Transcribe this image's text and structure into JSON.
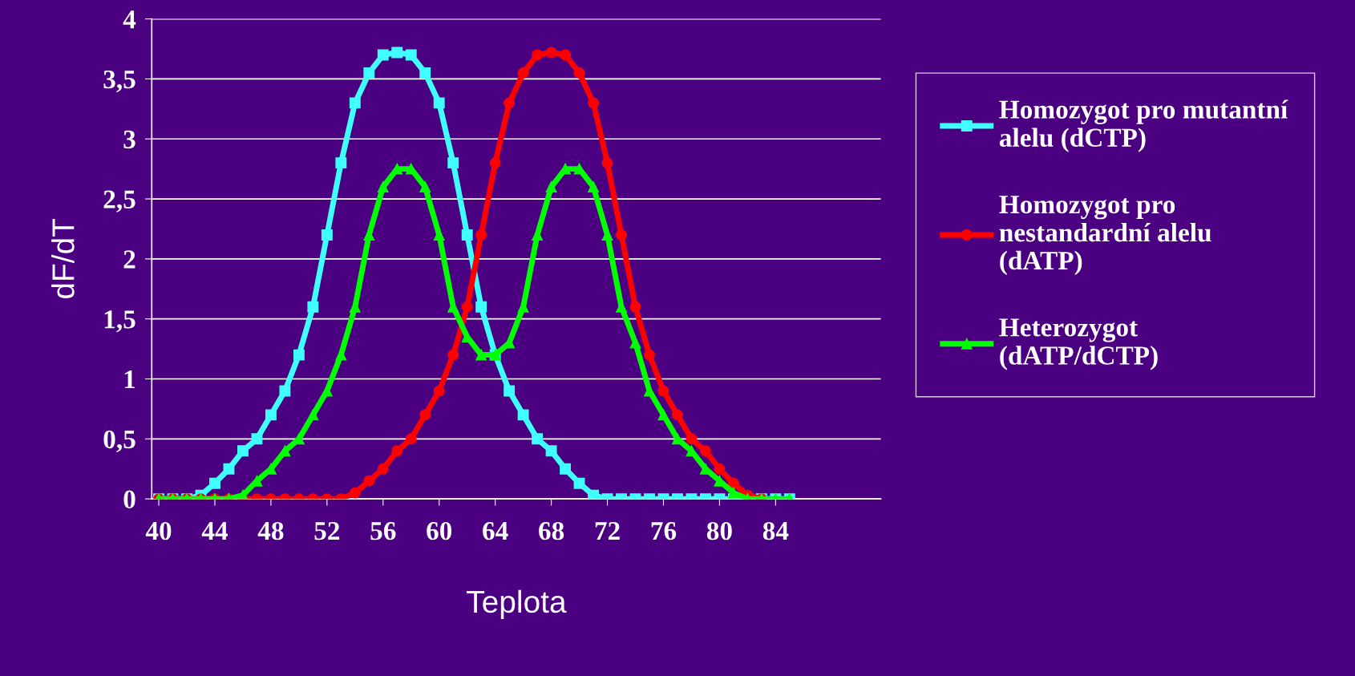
{
  "chart_data": {
    "type": "line",
    "xlabel": "Teplota",
    "ylabel": "dF/dT",
    "xlim": [
      39.5,
      91.5
    ],
    "xticks": [
      40,
      44,
      48,
      52,
      56,
      60,
      64,
      68,
      72,
      76,
      80,
      84
    ],
    "ylim": [
      0,
      4
    ],
    "yticks": [
      {
        "value": 0,
        "label": "0"
      },
      {
        "value": 0.5,
        "label": "0,5"
      },
      {
        "value": 1,
        "label": "1"
      },
      {
        "value": 1.5,
        "label": "1,5"
      },
      {
        "value": 2,
        "label": "2"
      },
      {
        "value": 2.5,
        "label": "2,5"
      },
      {
        "value": 3,
        "label": "3"
      },
      {
        "value": 3.5,
        "label": "3,5"
      },
      {
        "value": 4,
        "label": "4"
      }
    ],
    "grid": "y",
    "legend": "right",
    "line_style": "solid",
    "series": [
      {
        "name": "Homozygot pro mutantní alelu (dCTP)",
        "color": "#40ffff",
        "marker": "square",
        "x": [
          40,
          41,
          42,
          43,
          44,
          45,
          46,
          47,
          48,
          49,
          50,
          51,
          52,
          53,
          54,
          55,
          56,
          57,
          58,
          59,
          60,
          61,
          62,
          63,
          64,
          65,
          66,
          67,
          68,
          69,
          70,
          71,
          72,
          73,
          74,
          75,
          76,
          77,
          78,
          79,
          80,
          81,
          82,
          83,
          84,
          85
        ],
        "values": [
          0,
          0,
          0,
          0.03,
          0.13,
          0.25,
          0.4,
          0.5,
          0.7,
          0.9,
          1.2,
          1.6,
          2.2,
          2.8,
          3.3,
          3.55,
          3.7,
          3.72,
          3.7,
          3.55,
          3.3,
          2.8,
          2.2,
          1.6,
          1.2,
          0.9,
          0.7,
          0.5,
          0.4,
          0.25,
          0.13,
          0.03,
          0,
          0,
          0,
          0,
          0,
          0,
          0,
          0,
          0,
          0,
          0,
          0,
          0,
          0
        ]
      },
      {
        "name": "Homozygot pro nestandardní alelu (dATP)",
        "color": "#ff0000",
        "marker": "circle",
        "x": [
          40,
          41,
          42,
          43,
          44,
          45,
          46,
          47,
          48,
          49,
          50,
          51,
          52,
          53,
          54,
          55,
          56,
          57,
          58,
          59,
          60,
          61,
          62,
          63,
          64,
          65,
          66,
          67,
          68,
          69,
          70,
          71,
          72,
          73,
          74,
          75,
          76,
          77,
          78,
          79,
          80,
          81,
          82,
          83
        ],
        "values": [
          0,
          0,
          0,
          0,
          0,
          0,
          0,
          0,
          0,
          0,
          0,
          0,
          0,
          0,
          0.05,
          0.15,
          0.25,
          0.4,
          0.5,
          0.7,
          0.9,
          1.2,
          1.6,
          2.2,
          2.8,
          3.3,
          3.55,
          3.7,
          3.72,
          3.7,
          3.55,
          3.3,
          2.8,
          2.2,
          1.6,
          1.2,
          0.9,
          0.7,
          0.5,
          0.4,
          0.25,
          0.13,
          0.03,
          0
        ]
      },
      {
        "name": "Heterozygot (dATP/dCTP)",
        "color": "#00ff00",
        "marker": "triangle",
        "x": [
          40,
          41,
          42,
          43,
          44,
          45,
          46,
          47,
          48,
          49,
          50,
          51,
          52,
          53,
          54,
          55,
          56,
          57,
          58,
          59,
          60,
          61,
          62,
          63,
          64,
          65,
          66,
          67,
          68,
          69,
          70,
          71,
          72,
          73,
          74,
          75,
          76,
          77,
          78,
          79,
          80,
          81,
          82,
          83,
          84,
          85
        ],
        "values": [
          0,
          0,
          0,
          0,
          0,
          0,
          0.03,
          0.15,
          0.25,
          0.4,
          0.5,
          0.7,
          0.9,
          1.2,
          1.6,
          2.2,
          2.6,
          2.75,
          2.75,
          2.6,
          2.2,
          1.6,
          1.35,
          1.2,
          1.2,
          1.3,
          1.6,
          2.2,
          2.6,
          2.75,
          2.75,
          2.6,
          2.2,
          1.6,
          1.3,
          0.9,
          0.7,
          0.5,
          0.4,
          0.25,
          0.15,
          0.05,
          0,
          0,
          0,
          0
        ]
      }
    ]
  }
}
